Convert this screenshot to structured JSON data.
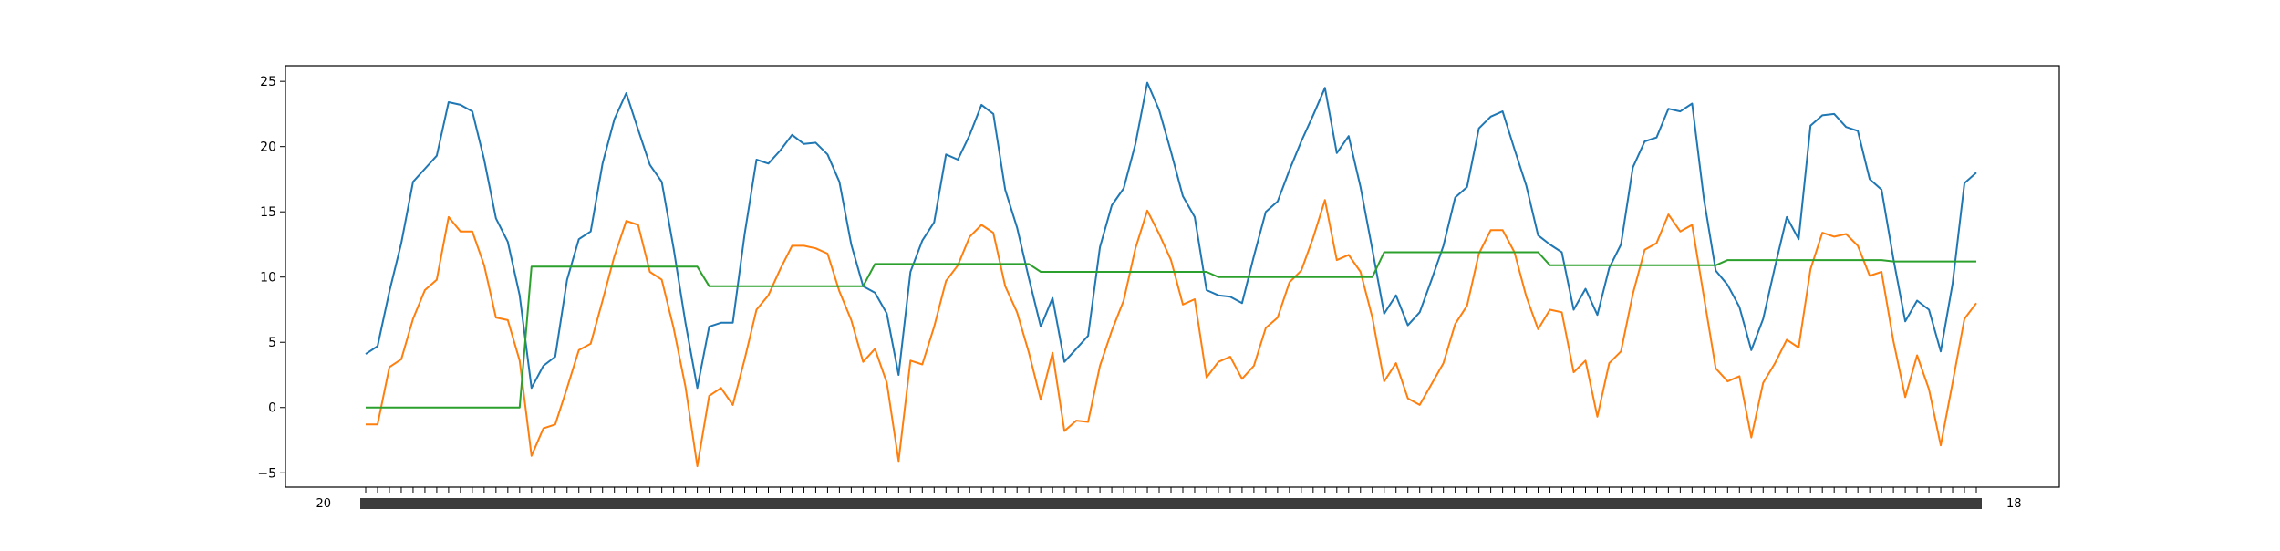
{
  "chart_data": {
    "type": "line",
    "title": "",
    "xlabel": "",
    "ylabel": "",
    "ylim": [
      -6.1,
      26.2
    ],
    "yticks": [
      -5,
      0,
      5,
      10,
      15,
      20,
      25
    ],
    "grid": false,
    "legend": "none",
    "x_tick_labels_first": "20",
    "x_tick_labels_last": "18",
    "series": [
      {
        "color": "#1f77b4",
        "values": [
          4.1,
          4.7,
          8.9,
          12.6,
          17.3,
          18.3,
          19.3,
          23.4,
          23.2,
          22.7,
          19.0,
          14.5,
          12.7,
          8.6,
          1.5,
          3.2,
          3.9,
          9.8,
          12.9,
          13.5,
          18.7,
          22.1,
          24.1,
          21.3,
          18.6,
          17.3,
          12.2,
          6.5,
          1.5,
          6.2,
          6.5,
          6.5,
          13.3,
          19.0,
          18.7,
          19.7,
          20.9,
          20.2,
          20.3,
          19.4,
          17.3,
          12.5,
          9.3,
          8.8,
          7.2,
          2.5,
          10.4,
          12.8,
          14.2,
          19.4,
          19.0,
          20.9,
          23.2,
          22.5,
          16.7,
          13.8,
          9.9,
          6.2,
          8.4,
          3.5,
          4.5,
          5.5,
          12.3,
          15.5,
          16.8,
          20.2,
          24.9,
          22.8,
          19.6,
          16.2,
          14.6,
          9.0,
          8.6,
          8.5,
          8.0,
          11.6,
          15.0,
          15.8,
          18.2,
          20.4,
          22.4,
          24.5,
          19.5,
          20.8,
          16.9,
          12.1,
          7.2,
          8.6,
          6.3,
          7.3,
          9.8,
          12.4,
          16.1,
          16.9,
          21.4,
          22.3,
          22.7,
          19.8,
          17.0,
          13.2,
          12.5,
          11.9,
          7.5,
          9.1,
          7.1,
          10.7,
          12.5,
          18.4,
          20.4,
          20.7,
          22.9,
          22.7,
          23.3,
          16.0,
          10.5,
          9.4,
          7.7,
          4.4,
          6.8,
          10.8,
          14.6,
          12.9,
          21.6,
          22.4,
          22.5,
          21.5,
          21.2,
          17.5,
          16.7,
          11.4,
          6.6,
          8.2,
          7.5,
          4.3,
          9.5,
          17.2,
          18.0
        ]
      },
      {
        "color": "#ff7f0e",
        "values": [
          -1.3,
          -1.3,
          3.1,
          3.7,
          6.8,
          9.0,
          9.8,
          14.6,
          13.5,
          13.5,
          10.9,
          6.9,
          6.7,
          3.6,
          -3.7,
          -1.6,
          -1.3,
          1.5,
          4.4,
          4.9,
          8.2,
          11.6,
          14.3,
          14.0,
          10.4,
          9.8,
          6.1,
          1.6,
          -4.5,
          0.9,
          1.5,
          0.2,
          3.7,
          7.5,
          8.6,
          10.6,
          12.4,
          12.4,
          12.2,
          11.8,
          8.9,
          6.7,
          3.5,
          4.5,
          1.9,
          -4.1,
          3.6,
          3.3,
          6.2,
          9.7,
          10.9,
          13.1,
          14.0,
          13.4,
          9.3,
          7.3,
          4.2,
          0.6,
          4.2,
          -1.8,
          -1.0,
          -1.1,
          3.2,
          5.9,
          8.2,
          12.2,
          15.1,
          13.3,
          11.3,
          7.9,
          8.3,
          2.3,
          3.5,
          3.9,
          2.2,
          3.2,
          6.1,
          6.9,
          9.6,
          10.5,
          13.0,
          15.9,
          11.3,
          11.7,
          10.4,
          6.9,
          2.0,
          3.4,
          0.7,
          0.2,
          1.8,
          3.4,
          6.4,
          7.8,
          11.8,
          13.6,
          13.6,
          11.9,
          8.5,
          6.0,
          7.5,
          7.3,
          2.7,
          3.6,
          -0.7,
          3.4,
          4.3,
          8.7,
          12.1,
          12.6,
          14.8,
          13.5,
          14.0,
          8.5,
          3.0,
          2.0,
          2.4,
          -2.3,
          1.9,
          3.4,
          5.2,
          4.6,
          10.6,
          13.4,
          13.1,
          13.3,
          12.4,
          10.1,
          10.4,
          5.1,
          0.8,
          4.0,
          1.4,
          -2.9,
          1.9,
          6.8,
          8.0
        ]
      },
      {
        "color": "#2ca02c",
        "values": [
          0.0,
          0.0,
          0.0,
          0.0,
          0.0,
          0.0,
          0.0,
          0.0,
          0.0,
          0.0,
          0.0,
          0.0,
          0.0,
          0.0,
          10.8,
          10.8,
          10.8,
          10.8,
          10.8,
          10.8,
          10.8,
          10.8,
          10.8,
          10.8,
          10.8,
          10.8,
          10.8,
          10.8,
          10.8,
          9.3,
          9.3,
          9.3,
          9.3,
          9.3,
          9.3,
          9.3,
          9.3,
          9.3,
          9.3,
          9.3,
          9.3,
          9.3,
          9.3,
          11.0,
          11.0,
          11.0,
          11.0,
          11.0,
          11.0,
          11.0,
          11.0,
          11.0,
          11.0,
          11.0,
          11.0,
          11.0,
          11.0,
          10.4,
          10.4,
          10.4,
          10.4,
          10.4,
          10.4,
          10.4,
          10.4,
          10.4,
          10.4,
          10.4,
          10.4,
          10.4,
          10.4,
          10.4,
          10.0,
          10.0,
          10.0,
          10.0,
          10.0,
          10.0,
          10.0,
          10.0,
          10.0,
          10.0,
          10.0,
          10.0,
          10.0,
          10.0,
          11.9,
          11.9,
          11.9,
          11.9,
          11.9,
          11.9,
          11.9,
          11.9,
          11.9,
          11.9,
          11.9,
          11.9,
          11.9,
          11.9,
          10.9,
          10.9,
          10.9,
          10.9,
          10.9,
          10.9,
          10.9,
          10.9,
          10.9,
          10.9,
          10.9,
          10.9,
          10.9,
          10.9,
          10.9,
          11.3,
          11.3,
          11.3,
          11.3,
          11.3,
          11.3,
          11.3,
          11.3,
          11.3,
          11.3,
          11.3,
          11.3,
          11.3,
          11.3,
          11.2,
          11.2,
          11.2,
          11.2,
          11.2,
          11.2,
          11.2,
          11.2
        ]
      }
    ]
  }
}
